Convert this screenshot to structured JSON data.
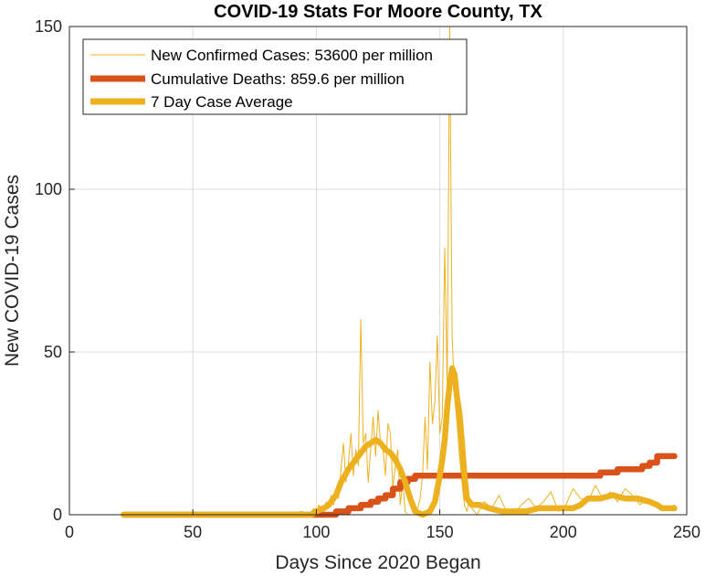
{
  "chart_data": {
    "type": "line",
    "title": "COVID-19 Stats For Moore County, TX",
    "xlabel": "Days Since 2020 Began",
    "ylabel": "New COVID-19 Cases",
    "xlim": [
      0,
      250
    ],
    "ylim": [
      0,
      150
    ],
    "xticks": [
      0,
      50,
      100,
      150,
      200,
      250
    ],
    "yticks": [
      0,
      50,
      100,
      150
    ],
    "grid": true,
    "legend_position": "top-left",
    "series": [
      {
        "name": "New Confirmed Cases: 53600 per million",
        "color": "#EDB120",
        "line_weight": "thin",
        "x": [
          22,
          40,
          60,
          80,
          90,
          94,
          97,
          99,
          100,
          101,
          102,
          103,
          104,
          105,
          106,
          107,
          108,
          109,
          110,
          111,
          112,
          113,
          114,
          115,
          116,
          117,
          118,
          119,
          120,
          121,
          122,
          123,
          124,
          125,
          126,
          127,
          128,
          129,
          130,
          131,
          132,
          133,
          134,
          135,
          136,
          137,
          138,
          139,
          140,
          141,
          142,
          143,
          144,
          145,
          146,
          147,
          148,
          149,
          150,
          151,
          152,
          153,
          154,
          155,
          156,
          157,
          158,
          159,
          160,
          161,
          162,
          163,
          165,
          168,
          171,
          174,
          177,
          180,
          183,
          186,
          189,
          192,
          195,
          198,
          201,
          204,
          207,
          210,
          213,
          216,
          219,
          222,
          225,
          228,
          231,
          234,
          237,
          240,
          243,
          245
        ],
        "y": [
          0,
          0,
          0,
          0,
          0,
          1,
          0,
          2,
          0,
          3,
          2,
          1,
          4,
          2,
          6,
          3,
          8,
          5,
          14,
          22,
          10,
          16,
          25,
          12,
          20,
          15,
          60,
          22,
          25,
          10,
          20,
          30,
          18,
          32,
          22,
          20,
          12,
          28,
          25,
          8,
          15,
          20,
          3,
          10,
          1,
          0,
          0,
          0,
          0,
          2,
          5,
          12,
          30,
          14,
          47,
          28,
          35,
          55,
          25,
          30,
          82,
          40,
          150,
          55,
          36,
          28,
          18,
          10,
          3,
          1,
          5,
          2,
          0,
          4,
          2,
          6,
          1,
          0,
          3,
          5,
          2,
          4,
          7,
          1,
          3,
          8,
          5,
          4,
          9,
          5,
          7,
          4,
          8,
          6,
          3,
          5,
          4,
          2,
          2,
          3
        ]
      },
      {
        "name": "Cumulative Deaths: 859.6 per million",
        "color": "#D95319",
        "line_weight": "thick",
        "x": [
          22,
          105,
          108,
          108,
          113,
          113,
          118,
          118,
          122,
          122,
          125,
          125,
          128,
          128,
          131,
          131,
          134,
          134,
          137,
          137,
          140,
          140,
          160,
          180,
          200,
          215,
          215,
          222,
          222,
          232,
          232,
          235,
          235,
          238,
          238,
          245
        ],
        "y": [
          0,
          0,
          0,
          1,
          1,
          2,
          2,
          3,
          3,
          4,
          4,
          5,
          5,
          6,
          6,
          8,
          8,
          10,
          10,
          11,
          11,
          12,
          12,
          12,
          12,
          12,
          13,
          13,
          14,
          14,
          15,
          15,
          16,
          16,
          18,
          18
        ]
      },
      {
        "name": "7 Day Case Average",
        "color": "#EDB120",
        "line_weight": "thick",
        "x": [
          22,
          50,
          80,
          95,
          98,
          100,
          103,
          105,
          108,
          110,
          113,
          116,
          118,
          120,
          122,
          124,
          126,
          128,
          130,
          132,
          134,
          136,
          138,
          140,
          143,
          146,
          148,
          150,
          151,
          152,
          153,
          154,
          155,
          156,
          157,
          158,
          159,
          160,
          161,
          163,
          166,
          170,
          175,
          180,
          185,
          190,
          195,
          200,
          204,
          207,
          210,
          215,
          220,
          225,
          230,
          235,
          238,
          240,
          245
        ],
        "y": [
          0,
          0,
          0,
          0,
          0,
          1,
          2,
          3,
          6,
          10,
          14,
          17,
          19,
          21,
          22,
          23,
          22,
          20,
          19,
          17,
          14,
          10,
          5,
          1,
          0,
          1,
          4,
          12,
          17,
          23,
          33,
          40,
          45,
          43,
          36,
          31,
          22,
          12,
          5,
          3,
          3,
          2,
          1,
          1,
          1,
          2,
          2,
          2,
          2,
          3,
          5,
          5,
          6,
          5,
          5,
          4,
          3,
          2,
          2
        ]
      }
    ]
  }
}
